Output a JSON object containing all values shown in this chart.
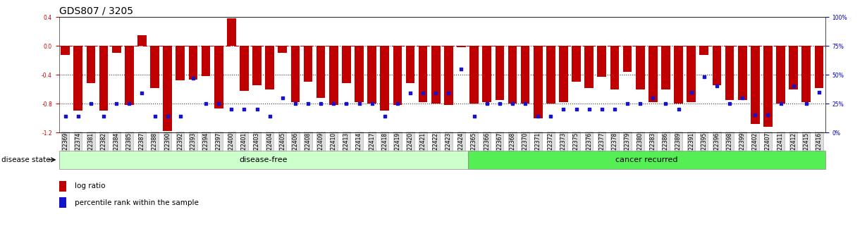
{
  "title": "GDS807 / 3205",
  "samples": [
    "GSM22369",
    "GSM22374",
    "GSM22381",
    "GSM22382",
    "GSM22384",
    "GSM22385",
    "GSM22387",
    "GSM22388",
    "GSM22390",
    "GSM22392",
    "GSM22393",
    "GSM22394",
    "GSM22397",
    "GSM22400",
    "GSM22401",
    "GSM22403",
    "GSM22404",
    "GSM22405",
    "GSM22406",
    "GSM22408",
    "GSM22409",
    "GSM22410",
    "GSM22413",
    "GSM22414",
    "GSM22417",
    "GSM22418",
    "GSM22419",
    "GSM22420",
    "GSM22421",
    "GSM22422",
    "GSM22423",
    "GSM22424",
    "GSM22365",
    "GSM22366",
    "GSM22367",
    "GSM22368",
    "GSM22370",
    "GSM22371",
    "GSM22372",
    "GSM22373",
    "GSM22375",
    "GSM22376",
    "GSM22377",
    "GSM22378",
    "GSM22379",
    "GSM22380",
    "GSM22383",
    "GSM22386",
    "GSM22389",
    "GSM22391",
    "GSM22395",
    "GSM22396",
    "GSM22398",
    "GSM22399",
    "GSM22402",
    "GSM22407",
    "GSM22411",
    "GSM22412",
    "GSM22415",
    "GSM22416"
  ],
  "log_ratio": [
    -0.13,
    -0.9,
    -0.52,
    -0.9,
    -0.1,
    -0.82,
    0.15,
    -0.58,
    -1.18,
    -0.48,
    -0.47,
    -0.42,
    -0.87,
    0.38,
    -0.62,
    -0.55,
    -0.6,
    -0.1,
    -0.78,
    -0.5,
    -0.72,
    -0.82,
    -0.52,
    -0.78,
    -0.8,
    -0.9,
    -0.82,
    -0.52,
    -0.78,
    -0.8,
    -0.82,
    -0.02,
    -0.8,
    -0.78,
    -0.75,
    -0.8,
    -0.8,
    -1.0,
    -0.8,
    -0.78,
    -0.5,
    -0.58,
    -0.43,
    -0.6,
    -0.36,
    -0.6,
    -0.78,
    -0.6,
    -0.8,
    -0.78,
    -0.13,
    -0.55,
    -0.75,
    -0.75,
    -1.08,
    -1.12,
    -0.8,
    -0.6,
    -0.78,
    -0.58
  ],
  "percentile": [
    14,
    14,
    25,
    14,
    25,
    25,
    34,
    14,
    14,
    14,
    47,
    25,
    25,
    20,
    20,
    20,
    14,
    30,
    25,
    25,
    25,
    25,
    25,
    25,
    25,
    14,
    25,
    34,
    34,
    34,
    34,
    55,
    14,
    25,
    25,
    25,
    25,
    14,
    14,
    20,
    20,
    20,
    20,
    20,
    25,
    25,
    30,
    25,
    20,
    35,
    48,
    40,
    25,
    30,
    15,
    15,
    25,
    40,
    25,
    35
  ],
  "disease_free_count": 32,
  "total_count": 60,
  "ylim_left": [
    -1.2,
    0.4
  ],
  "ylim_right": [
    0,
    100
  ],
  "yticks_left": [
    -1.2,
    -0.8,
    -0.4,
    0.0,
    0.4
  ],
  "yticks_right": [
    0,
    25,
    50,
    75,
    100
  ],
  "hlines_dotted": [
    -0.4,
    -0.8
  ],
  "zero_line": 0.0,
  "bar_color": "#C00000",
  "dot_color": "#1414CC",
  "disease_free_color": "#CCFFCC",
  "cancer_recurred_color": "#55EE55",
  "group_label_disease_free": "disease-free",
  "group_label_cancer": "cancer recurred",
  "legend_bar_label": "log ratio",
  "legend_dot_label": "percentile rank within the sample",
  "disease_state_label": "disease state",
  "right_axis_color": "#0000BB",
  "zero_line_color": "#CC0000",
  "hline_color": "#333333",
  "title_fontsize": 10,
  "tick_fontsize": 5.5,
  "group_fontsize": 8,
  "label_fontsize": 7.5
}
